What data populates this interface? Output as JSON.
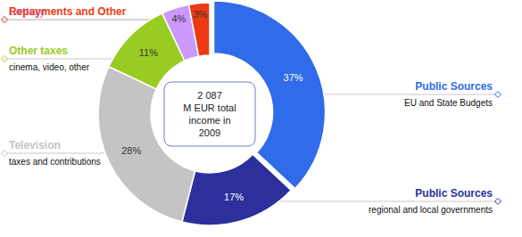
{
  "chart_data": {
    "type": "donut",
    "categories": [
      "Public Sources",
      "Public Sources",
      "Television",
      "Other taxes",
      "Lottery",
      "Repayments and Other"
    ],
    "descriptions": [
      "EU and State Budgets",
      "regional and local governments",
      "taxes and contributions",
      "cinema, video, other",
      null,
      null
    ],
    "values": [
      37,
      17,
      28,
      11,
      4,
      3
    ],
    "value_labels": [
      "37%",
      "17%",
      "28%",
      "11%",
      "4%",
      "3%"
    ],
    "colors": [
      "#2f6bea",
      "#2c2f9c",
      "#c4c4c4",
      "#99cc22",
      "#cc99ff",
      "#ee3a12"
    ],
    "data_labels": true,
    "center_text": [
      "2 087",
      "M EUR total",
      "income in",
      "2009"
    ]
  }
}
